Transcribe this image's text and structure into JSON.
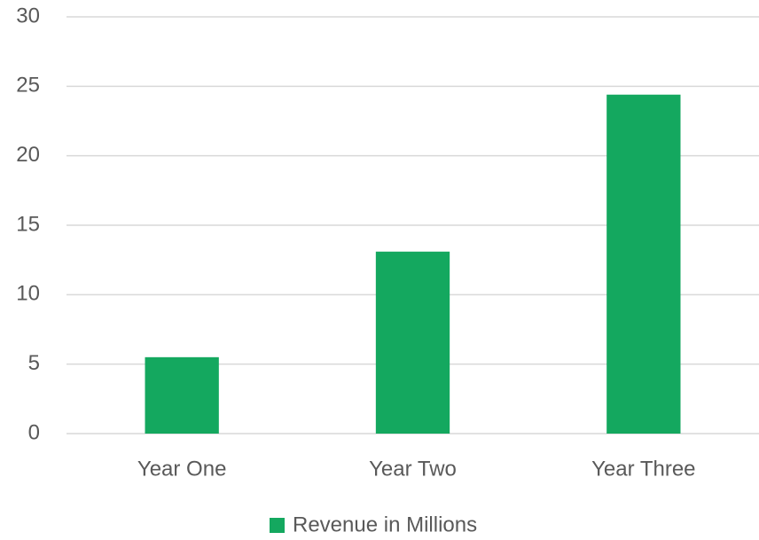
{
  "chart_data": {
    "type": "bar",
    "categories": [
      "Year One",
      "Year Two",
      "Year Three"
    ],
    "series": [
      {
        "name": "Revenue in Millions",
        "color": "#14a85f",
        "values": [
          5.5,
          13.1,
          24.4
        ]
      }
    ],
    "ylim": [
      0,
      30
    ],
    "yticks": [
      0,
      5,
      10,
      15,
      20,
      25,
      30
    ],
    "grid": true,
    "legend": "bottom"
  }
}
